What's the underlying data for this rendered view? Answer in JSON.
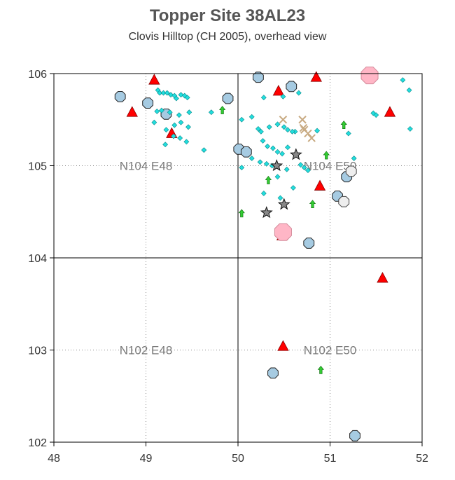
{
  "chart_data": {
    "type": "scatter",
    "title": "Topper Site 38AL23",
    "subtitle": "Clovis Hilltop (CH 2005), overhead view",
    "xlabel": "",
    "ylabel": "",
    "xlim": [
      48,
      52
    ],
    "ylim": [
      102,
      106
    ],
    "x_ticks": [
      "48",
      "49",
      "50",
      "51",
      "52"
    ],
    "y_ticks": [
      "102",
      "103",
      "104",
      "105",
      "106"
    ],
    "grid": "dotted",
    "quadrant_labels": [
      {
        "text": "N104 E48",
        "x": 49.0,
        "y": 105.0
      },
      {
        "text": "N104 E50",
        "x": 51.0,
        "y": 105.0
      },
      {
        "text": "N102 E48",
        "x": 49.0,
        "y": 103.0
      },
      {
        "text": "N102 E50",
        "x": 51.0,
        "y": 103.0
      }
    ],
    "colors": {
      "octagon_blue": "#a6cbe2",
      "triangle_red": "#ff0000",
      "diamond_cyan": "#22dddd",
      "arrow_green": "#33cc33",
      "cross_tan": "#c8aa82",
      "star_gray": "#888888",
      "octagon_white": "#eeeeee",
      "octagon_pink": "#ffb6c6"
    },
    "series": [
      {
        "marker": "octagon_blue",
        "points": [
          [
            48.72,
            105.75
          ],
          [
            49.02,
            105.68
          ],
          [
            49.22,
            105.56
          ],
          [
            49.89,
            105.73
          ],
          [
            50.22,
            105.96
          ],
          [
            50.58,
            105.86
          ],
          [
            50.01,
            105.18
          ],
          [
            50.09,
            105.15
          ],
          [
            51.08,
            104.67
          ],
          [
            51.18,
            104.88
          ],
          [
            50.77,
            104.16
          ],
          [
            50.38,
            102.75
          ],
          [
            51.27,
            102.07
          ]
        ]
      },
      {
        "marker": "triangle_red",
        "points": [
          [
            48.85,
            105.58
          ],
          [
            49.09,
            105.93
          ],
          [
            49.28,
            105.35
          ],
          [
            50.44,
            105.81
          ],
          [
            50.85,
            105.96
          ],
          [
            51.65,
            105.58
          ],
          [
            50.89,
            104.78
          ],
          [
            50.48,
            104.24
          ],
          [
            51.57,
            103.78
          ],
          [
            50.49,
            103.04
          ]
        ]
      },
      {
        "marker": "diamond_cyan",
        "points": [
          [
            49.13,
            105.82
          ],
          [
            49.15,
            105.79
          ],
          [
            49.19,
            105.79
          ],
          [
            49.23,
            105.79
          ],
          [
            49.27,
            105.77
          ],
          [
            49.31,
            105.76
          ],
          [
            49.33,
            105.73
          ],
          [
            49.38,
            105.77
          ],
          [
            49.42,
            105.76
          ],
          [
            49.45,
            105.74
          ],
          [
            49.12,
            105.59
          ],
          [
            49.17,
            105.6
          ],
          [
            49.26,
            105.58
          ],
          [
            49.36,
            105.55
          ],
          [
            49.47,
            105.58
          ],
          [
            49.71,
            105.58
          ],
          [
            49.09,
            105.47
          ],
          [
            49.31,
            105.44
          ],
          [
            49.38,
            105.47
          ],
          [
            49.46,
            105.42
          ],
          [
            49.22,
            105.39
          ],
          [
            49.3,
            105.32
          ],
          [
            49.37,
            105.3
          ],
          [
            49.44,
            105.26
          ],
          [
            49.21,
            105.23
          ],
          [
            49.63,
            105.17
          ],
          [
            50.28,
            105.74
          ],
          [
            50.49,
            105.75
          ],
          [
            50.66,
            105.79
          ],
          [
            50.04,
            105.5
          ],
          [
            50.15,
            105.53
          ],
          [
            50.22,
            105.4
          ],
          [
            50.25,
            105.37
          ],
          [
            50.34,
            105.42
          ],
          [
            50.43,
            105.45
          ],
          [
            50.5,
            105.42
          ],
          [
            50.54,
            105.39
          ],
          [
            50.62,
            105.37
          ],
          [
            50.27,
            105.27
          ],
          [
            50.32,
            105.21
          ],
          [
            50.38,
            105.19
          ],
          [
            50.43,
            105.15
          ],
          [
            50.48,
            105.13
          ],
          [
            50.15,
            105.08
          ],
          [
            50.24,
            105.04
          ],
          [
            50.31,
            105.02
          ],
          [
            50.37,
            105.0
          ],
          [
            50.53,
            104.96
          ],
          [
            50.04,
            104.98
          ],
          [
            50.28,
            104.7
          ],
          [
            50.43,
            104.88
          ],
          [
            50.46,
            104.65
          ],
          [
            50.6,
            104.76
          ],
          [
            50.68,
            105.01
          ],
          [
            50.72,
            104.98
          ],
          [
            50.76,
            104.95
          ],
          [
            50.86,
            105.38
          ],
          [
            51.2,
            105.35
          ],
          [
            51.26,
            105.08
          ],
          [
            51.47,
            105.57
          ],
          [
            51.5,
            105.55
          ],
          [
            51.79,
            105.93
          ],
          [
            51.86,
            105.82
          ],
          [
            51.87,
            105.4
          ],
          [
            50.59,
            105.37
          ],
          [
            50.54,
            105.2
          ]
        ]
      },
      {
        "marker": "arrow_green",
        "points": [
          [
            49.83,
            105.6
          ],
          [
            51.15,
            105.44
          ],
          [
            50.96,
            105.11
          ],
          [
            50.33,
            104.84
          ],
          [
            50.04,
            104.48
          ],
          [
            50.81,
            104.58
          ],
          [
            50.9,
            102.78
          ]
        ]
      },
      {
        "marker": "cross_tan",
        "points": [
          [
            50.49,
            105.5
          ],
          [
            50.7,
            105.5
          ],
          [
            50.71,
            105.41
          ],
          [
            50.72,
            105.39
          ],
          [
            50.76,
            105.35
          ],
          [
            50.8,
            105.3
          ]
        ]
      },
      {
        "marker": "star_gray",
        "points": [
          [
            50.63,
            105.12
          ],
          [
            50.42,
            105.0
          ],
          [
            50.5,
            104.58
          ],
          [
            50.31,
            104.49
          ]
        ]
      },
      {
        "marker": "octagon_white",
        "points": [
          [
            51.23,
            104.94
          ],
          [
            51.15,
            104.61
          ]
        ]
      },
      {
        "marker": "octagon_pink",
        "points": [
          [
            51.43,
            105.98
          ],
          [
            50.49,
            104.28
          ]
        ]
      }
    ]
  }
}
